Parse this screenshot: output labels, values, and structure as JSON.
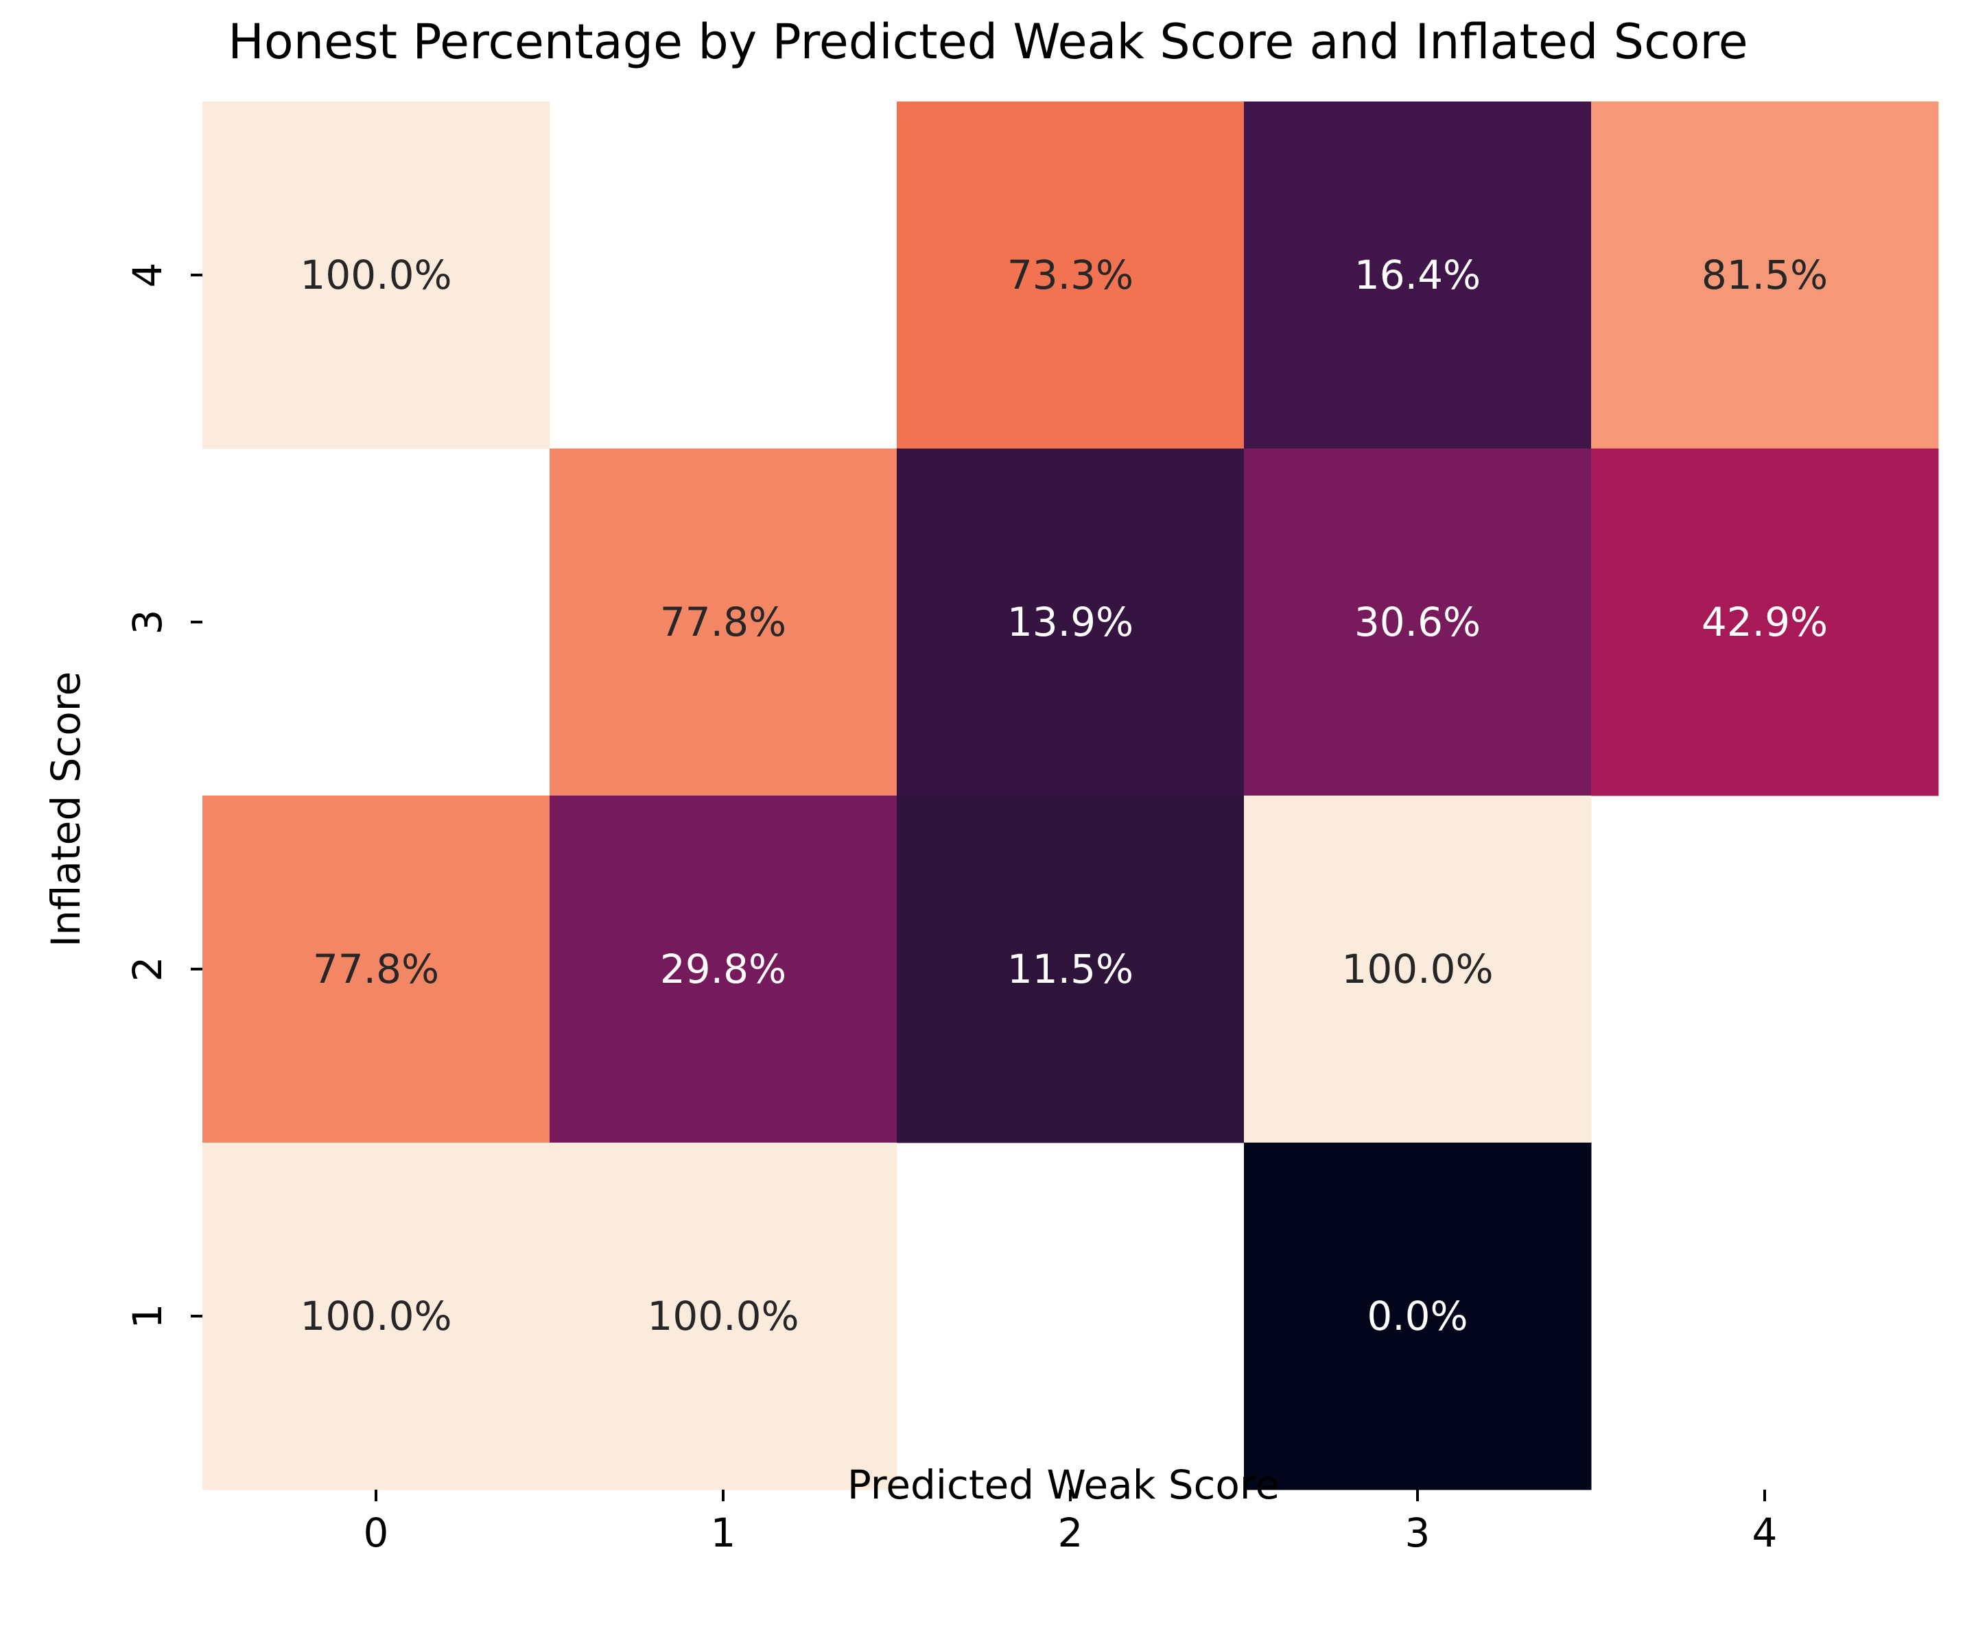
{
  "chart_data": {
    "type": "heatmap",
    "title": "Honest Percentage by Predicted Weak Score and Inflated Score",
    "xlabel": "Predicted Weak Score",
    "ylabel": "Inflated Score",
    "x_categories": [
      "0",
      "1",
      "2",
      "3",
      "4"
    ],
    "y_categories": [
      "4",
      "3",
      "2",
      "1"
    ],
    "values": [
      [
        100.0,
        null,
        73.3,
        16.4,
        81.5
      ],
      [
        null,
        77.8,
        13.9,
        30.6,
        42.9
      ],
      [
        77.8,
        29.8,
        11.5,
        100.0,
        null
      ],
      [
        100.0,
        100.0,
        null,
        0.0,
        null
      ]
    ],
    "cell_labels": [
      [
        "100.0%",
        "",
        "73.3%",
        "16.4%",
        "81.5%"
      ],
      [
        "",
        "77.8%",
        "13.9%",
        "30.6%",
        "42.9%"
      ],
      [
        "77.8%",
        "29.8%",
        "11.5%",
        "100.0%",
        ""
      ],
      [
        "100.0%",
        "100.0%",
        "",
        "0.0%",
        ""
      ]
    ],
    "value_range": [
      0,
      100
    ],
    "colormap": "rocket",
    "colorbar": false,
    "grid": false
  }
}
